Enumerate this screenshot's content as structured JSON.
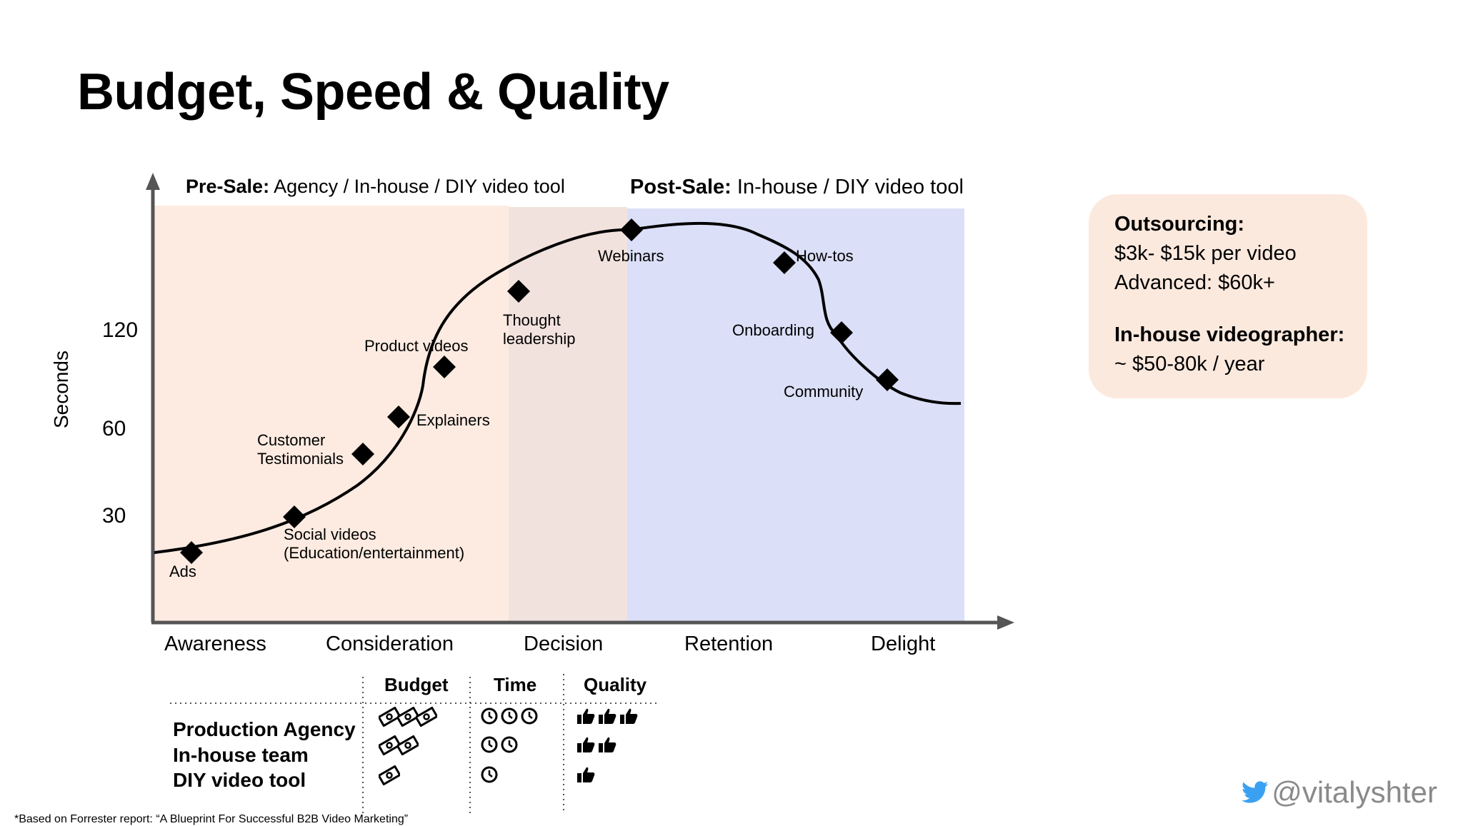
{
  "title": "Budget, Speed & Quality",
  "sections": {
    "pre_sale": {
      "bold": "Pre-Sale:",
      "rest": " Agency / In-house / DIY video tool"
    },
    "post_sale": {
      "bold": "Post-Sale:",
      "rest": " In-house / DIY video tool"
    }
  },
  "chart": {
    "ylabel": "Seconds",
    "yticks": [
      "120",
      "60",
      "30"
    ],
    "stages": [
      "Awareness",
      "Consideration",
      "Decision",
      "Retention",
      "Delight"
    ],
    "colors": {
      "pre_sale": "#fdebe1",
      "decision": "#f2e2de",
      "post_sale": "#dbdff7"
    },
    "points": [
      {
        "label": "Ads"
      },
      {
        "label": "Social videos\n(Education/entertainment)"
      },
      {
        "label": "Customer\nTestimonials"
      },
      {
        "label": "Explainers"
      },
      {
        "label": "Product videos"
      },
      {
        "label": "Thought\nleadership"
      },
      {
        "label": "Webinars"
      },
      {
        "label": "How-tos"
      },
      {
        "label": "Onboarding"
      },
      {
        "label": "Community"
      }
    ]
  },
  "info": {
    "outsourcing_head": "Outsourcing:",
    "outsourcing_line1": "$3k- $15k per video",
    "outsourcing_line2": "Advanced: $60k+",
    "inhouse_head": "In-house videographer:",
    "inhouse_line1": "~ $50-80k / year"
  },
  "table": {
    "columns": [
      "Budget",
      "Time",
      "Quality"
    ],
    "rows": [
      {
        "label": "Production Agency",
        "budget": 3,
        "time": 3,
        "quality": 3
      },
      {
        "label": "In-house team",
        "budget": 2,
        "time": 2,
        "quality": 2
      },
      {
        "label": "DIY video tool",
        "budget": 1,
        "time": 1,
        "quality": 1
      }
    ],
    "icons": {
      "budget": "money-icon",
      "time": "clock-icon",
      "quality": "thumbs-up-icon"
    }
  },
  "footnote": "*Based on Forrester report: “A Blueprint For Successful B2B Video Marketing”",
  "handle": "@vitalyshter",
  "handle_icon": "twitter-bird-icon"
}
